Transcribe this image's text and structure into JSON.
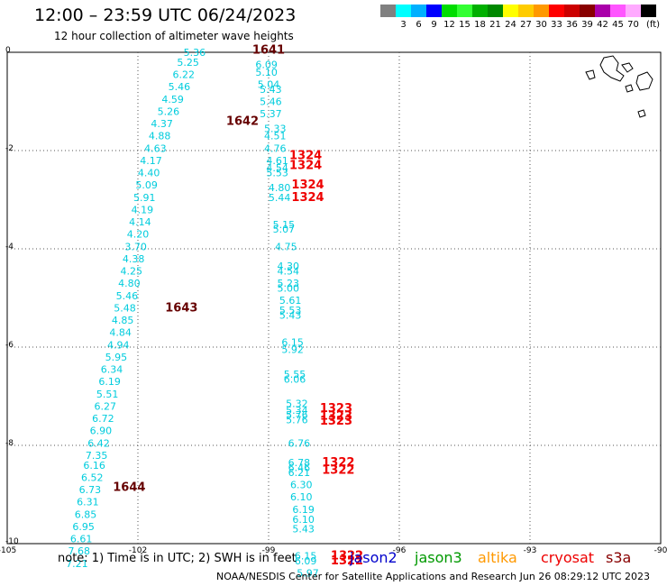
{
  "header": {
    "title": "12:00 – 23:59 UTC 06/24/2023",
    "subtitle": "12 hour collection of altimeter wave heights"
  },
  "color_scale": {
    "unit": "(ft)",
    "swatches": [
      {
        "label": "",
        "color": "#808080"
      },
      {
        "label": "3",
        "color": "#00ffff"
      },
      {
        "label": "6",
        "color": "#00b0ff"
      },
      {
        "label": "9",
        "color": "#0000ff"
      },
      {
        "label": "12",
        "color": "#00dd00"
      },
      {
        "label": "15",
        "color": "#33ff33"
      },
      {
        "label": "18",
        "color": "#00b000"
      },
      {
        "label": "21",
        "color": "#008800"
      },
      {
        "label": "24",
        "color": "#ffff00"
      },
      {
        "label": "27",
        "color": "#ffcc00"
      },
      {
        "label": "30",
        "color": "#ff9900"
      },
      {
        "label": "33",
        "color": "#ff0000"
      },
      {
        "label": "36",
        "color": "#cc0000"
      },
      {
        "label": "39",
        "color": "#880000"
      },
      {
        "label": "42",
        "color": "#aa00aa"
      },
      {
        "label": "45",
        "color": "#ff55ff"
      },
      {
        "label": "70",
        "color": "#ffaaff"
      },
      {
        "label": "",
        "color": "#000000"
      }
    ]
  },
  "axes": {
    "lon_range": [
      -105,
      -90
    ],
    "lat_range": [
      -10,
      0
    ],
    "x_ticks": [
      "-105",
      "-102",
      "-99",
      "-96",
      "-93",
      "-90"
    ],
    "x_tick_values": [
      -105,
      -102,
      -99,
      -96,
      -93,
      -90
    ],
    "y_ticks": [
      "0",
      "-2",
      "-4",
      "-6",
      "-8",
      "-10"
    ],
    "y_tick_values": [
      0,
      -2,
      -4,
      -6,
      -8,
      -10
    ],
    "grid": "dotted"
  },
  "value_color": "#00ccdd",
  "time_color": "#660000",
  "time_red_color": "#ee0000",
  "chart_data": {
    "type": "scatter",
    "track_a_values": [
      {
        "lon": -100.7,
        "lat": 0.0,
        "v": "5.36"
      },
      {
        "lon": -100.85,
        "lat": -0.2,
        "v": "5.25"
      },
      {
        "lon": -100.95,
        "lat": -0.45,
        "v": "6.22"
      },
      {
        "lon": -101.05,
        "lat": -0.7,
        "v": "5.46"
      },
      {
        "lon": -101.2,
        "lat": -0.95,
        "v": "4.59"
      },
      {
        "lon": -101.3,
        "lat": -1.2,
        "v": "5.26"
      },
      {
        "lon": -101.45,
        "lat": -1.45,
        "v": "4.37"
      },
      {
        "lon": -101.5,
        "lat": -1.7,
        "v": "4.88"
      },
      {
        "lon": -101.6,
        "lat": -1.95,
        "v": "4.63"
      },
      {
        "lon": -101.7,
        "lat": -2.2,
        "v": "4.17"
      },
      {
        "lon": -101.75,
        "lat": -2.45,
        "v": "4.40"
      },
      {
        "lon": -101.8,
        "lat": -2.7,
        "v": "5.09"
      },
      {
        "lon": -101.85,
        "lat": -2.95,
        "v": "5.91"
      },
      {
        "lon": -101.9,
        "lat": -3.2,
        "v": "4.19"
      },
      {
        "lon": -101.95,
        "lat": -3.45,
        "v": "4.14"
      },
      {
        "lon": -102.0,
        "lat": -3.7,
        "v": "4.20"
      },
      {
        "lon": -102.05,
        "lat": -3.95,
        "v": "3.70"
      },
      {
        "lon": -102.1,
        "lat": -4.2,
        "v": "4.38"
      },
      {
        "lon": -102.15,
        "lat": -4.45,
        "v": "4.25"
      },
      {
        "lon": -102.2,
        "lat": -4.7,
        "v": "4.80"
      },
      {
        "lon": -102.25,
        "lat": -4.95,
        "v": "5.46"
      },
      {
        "lon": -102.3,
        "lat": -5.2,
        "v": "5.48"
      },
      {
        "lon": -102.35,
        "lat": -5.45,
        "v": "4.85"
      },
      {
        "lon": -102.4,
        "lat": -5.7,
        "v": "4.84"
      },
      {
        "lon": -102.45,
        "lat": -5.95,
        "v": "4.94"
      },
      {
        "lon": -102.5,
        "lat": -6.2,
        "v": "5.95"
      },
      {
        "lon": -102.6,
        "lat": -6.45,
        "v": "6.34"
      },
      {
        "lon": -102.65,
        "lat": -6.7,
        "v": "6.19"
      },
      {
        "lon": -102.7,
        "lat": -6.95,
        "v": "5.51"
      },
      {
        "lon": -102.75,
        "lat": -7.2,
        "v": "6.27"
      },
      {
        "lon": -102.8,
        "lat": -7.45,
        "v": "6.72"
      },
      {
        "lon": -102.85,
        "lat": -7.7,
        "v": "6.90"
      },
      {
        "lon": -102.9,
        "lat": -7.95,
        "v": "6.42"
      },
      {
        "lon": -102.95,
        "lat": -8.2,
        "v": "7.35"
      },
      {
        "lon": -103.0,
        "lat": -8.4,
        "v": "6.16"
      },
      {
        "lon": -103.05,
        "lat": -8.65,
        "v": "6.52"
      },
      {
        "lon": -103.1,
        "lat": -8.9,
        "v": "6.73"
      },
      {
        "lon": -103.15,
        "lat": -9.15,
        "v": "6.31"
      },
      {
        "lon": -103.2,
        "lat": -9.4,
        "v": "6.85"
      },
      {
        "lon": -103.25,
        "lat": -9.65,
        "v": "6.95"
      },
      {
        "lon": -103.3,
        "lat": -9.9,
        "v": "6.61"
      },
      {
        "lon": -103.35,
        "lat": -10.15,
        "v": "7.68"
      },
      {
        "lon": -103.4,
        "lat": -10.4,
        "v": "7.21"
      }
    ],
    "track_b_values": [
      {
        "lon": -99.05,
        "lat": -0.25,
        "v": "6.09"
      },
      {
        "lon": -99.05,
        "lat": -0.4,
        "v": "5.10"
      },
      {
        "lon": -99.0,
        "lat": -0.65,
        "v": "5.04"
      },
      {
        "lon": -98.95,
        "lat": -0.75,
        "v": "5.43"
      },
      {
        "lon": -98.95,
        "lat": -1.0,
        "v": "5.46"
      },
      {
        "lon": -98.95,
        "lat": -1.25,
        "v": "5.37"
      },
      {
        "lon": -98.85,
        "lat": -1.55,
        "v": "5.33"
      },
      {
        "lon": -98.85,
        "lat": -1.7,
        "v": "4.51"
      },
      {
        "lon": -98.85,
        "lat": -1.95,
        "v": "4.76"
      },
      {
        "lon": -98.8,
        "lat": -2.2,
        "v": "4.61"
      },
      {
        "lon": -98.8,
        "lat": -2.35,
        "v": "4.54"
      },
      {
        "lon": -98.8,
        "lat": -2.45,
        "v": "5.53"
      },
      {
        "lon": -98.75,
        "lat": -2.75,
        "v": "4.80"
      },
      {
        "lon": -98.75,
        "lat": -2.95,
        "v": "5.44"
      },
      {
        "lon": -98.65,
        "lat": -3.5,
        "v": "5.15"
      },
      {
        "lon": -98.65,
        "lat": -3.6,
        "v": "5.07"
      },
      {
        "lon": -98.6,
        "lat": -3.95,
        "v": "4.75"
      },
      {
        "lon": -98.55,
        "lat": -4.35,
        "v": "4.30"
      },
      {
        "lon": -98.55,
        "lat": -4.45,
        "v": "4.54"
      },
      {
        "lon": -98.55,
        "lat": -4.7,
        "v": "5.23"
      },
      {
        "lon": -98.55,
        "lat": -4.8,
        "v": "5.00"
      },
      {
        "lon": -98.5,
        "lat": -5.05,
        "v": "5.61"
      },
      {
        "lon": -98.5,
        "lat": -5.25,
        "v": "5.53"
      },
      {
        "lon": -98.5,
        "lat": -5.35,
        "v": "5.43"
      },
      {
        "lon": -98.45,
        "lat": -5.9,
        "v": "6.15"
      },
      {
        "lon": -98.45,
        "lat": -6.05,
        "v": "5.92"
      },
      {
        "lon": -98.4,
        "lat": -6.55,
        "v": "5.55"
      },
      {
        "lon": -98.4,
        "lat": -6.65,
        "v": "6.06"
      },
      {
        "lon": -98.35,
        "lat": -7.15,
        "v": "5.32"
      },
      {
        "lon": -98.35,
        "lat": -7.28,
        "v": "5.34"
      },
      {
        "lon": -98.35,
        "lat": -7.38,
        "v": "5.76"
      },
      {
        "lon": -98.35,
        "lat": -7.48,
        "v": "5.76"
      },
      {
        "lon": -98.3,
        "lat": -7.95,
        "v": "6.76"
      },
      {
        "lon": -98.3,
        "lat": -8.35,
        "v": "6.78"
      },
      {
        "lon": -98.3,
        "lat": -8.45,
        "v": "6.46"
      },
      {
        "lon": -98.3,
        "lat": -8.55,
        "v": "6.21"
      },
      {
        "lon": -98.25,
        "lat": -8.8,
        "v": "6.30"
      },
      {
        "lon": -98.25,
        "lat": -9.05,
        "v": "6.10"
      },
      {
        "lon": -98.2,
        "lat": -9.3,
        "v": "6.19"
      },
      {
        "lon": -98.2,
        "lat": -9.5,
        "v": "6.10"
      },
      {
        "lon": -98.2,
        "lat": -9.7,
        "v": "5.43"
      },
      {
        "lon": -98.15,
        "lat": -10.25,
        "v": "6.15"
      },
      {
        "lon": -98.15,
        "lat": -10.35,
        "v": "6.09"
      },
      {
        "lon": -98.1,
        "lat": -10.6,
        "v": "5.97"
      }
    ],
    "time_labels": [
      {
        "lon": -99.0,
        "lat": 0.05,
        "t": "1641",
        "kind": "dark"
      },
      {
        "lon": -99.6,
        "lat": -1.4,
        "t": "1642",
        "kind": "dark"
      },
      {
        "lon": -101.0,
        "lat": -5.2,
        "t": "1643",
        "kind": "dark"
      },
      {
        "lon": -102.2,
        "lat": -8.85,
        "t": "1644",
        "kind": "dark"
      },
      {
        "lon": -98.15,
        "lat": -2.1,
        "t": "1324",
        "kind": "red"
      },
      {
        "lon": -98.15,
        "lat": -2.3,
        "t": "1324",
        "kind": "red"
      },
      {
        "lon": -98.1,
        "lat": -2.7,
        "t": "1324",
        "kind": "red"
      },
      {
        "lon": -98.1,
        "lat": -2.95,
        "t": "1324",
        "kind": "red"
      },
      {
        "lon": -97.45,
        "lat": -7.25,
        "t": "1323",
        "kind": "red"
      },
      {
        "lon": -97.45,
        "lat": -7.4,
        "t": "1323",
        "kind": "red"
      },
      {
        "lon": -97.45,
        "lat": -7.5,
        "t": "1323",
        "kind": "red"
      },
      {
        "lon": -97.4,
        "lat": -8.35,
        "t": "1322",
        "kind": "red"
      },
      {
        "lon": -97.4,
        "lat": -8.5,
        "t": "1322",
        "kind": "red"
      },
      {
        "lon": -97.2,
        "lat": -10.25,
        "t": "1322",
        "kind": "red"
      },
      {
        "lon": -97.2,
        "lat": -10.35,
        "t": "1322",
        "kind": "red"
      }
    ]
  },
  "note": "note:  1) Time is in UTC; 2) SWH is in feet",
  "satellites": [
    {
      "name": "jason2",
      "color": "#0000cc",
      "x": 388
    },
    {
      "name": "jason3",
      "color": "#009900",
      "x": 460
    },
    {
      "name": "altika",
      "color": "#ff9900",
      "x": 530
    },
    {
      "name": "cryosat",
      "color": "#ee0000",
      "x": 600
    },
    {
      "name": "s3a",
      "color": "#880000",
      "x": 672
    }
  ],
  "footer": "NOAA/NESDIS Center for Satellite Applications and Research    Jun 26 08:29:12 UTC 2023"
}
